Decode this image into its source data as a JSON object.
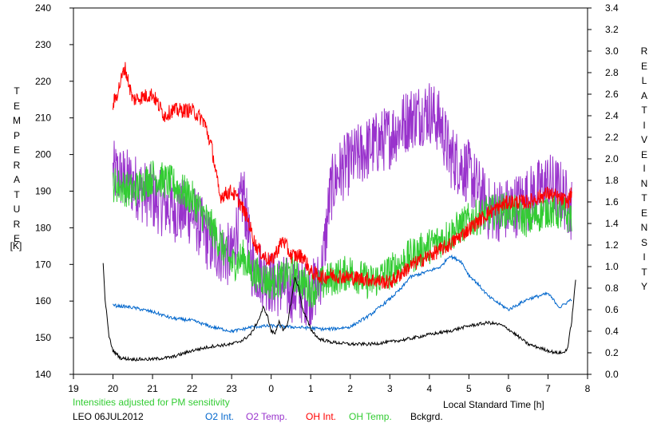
{
  "chart_data": {
    "type": "line",
    "left_axis": {
      "label_letters": [
        "T",
        "E",
        "M",
        "P",
        "E",
        "R",
        "A",
        "T",
        "U",
        "R",
        "E"
      ],
      "unit": "[K]",
      "range": [
        140,
        240
      ],
      "ticks": [
        "140",
        "150",
        "160",
        "170",
        "180",
        "190",
        "200",
        "210",
        "220",
        "230",
        "240"
      ]
    },
    "right_axis": {
      "label_word1": [
        "R",
        "E",
        "L",
        "A",
        "T",
        "I",
        "V",
        "E"
      ],
      "label_word2": [
        "I",
        "N",
        "T",
        "E",
        "N",
        "S",
        "I",
        "T",
        "Y"
      ],
      "range": [
        0.0,
        3.4
      ],
      "ticks": [
        "0.0",
        "0.2",
        "0.4",
        "0.6",
        "0.8",
        "1.0",
        "1.2",
        "1.4",
        "1.6",
        "1.8",
        "2.0",
        "2.2",
        "2.4",
        "2.6",
        "2.8",
        "3.0",
        "3.2",
        "3.4"
      ]
    },
    "x_axis": {
      "label": "Local Standard Time [h]",
      "range": [
        19,
        32
      ],
      "ticks": [
        "19",
        "20",
        "21",
        "22",
        "23",
        "0",
        "1",
        "2",
        "3",
        "4",
        "5",
        "6",
        "7",
        "8"
      ]
    },
    "note": "Intensities adjusted for PM sensitivity",
    "station": "LEO 06JUL2012",
    "legend": [
      "O2 Int.",
      "O2 Temp.",
      "OH Int.",
      "OH Temp.",
      "Bckgrd."
    ],
    "series": [
      {
        "name": "O2 Int.",
        "axis": "right",
        "color": "#0066cc",
        "x": [
          20.0,
          20.5,
          21.0,
          21.5,
          22.0,
          22.5,
          23.0,
          23.3,
          23.5,
          24.0,
          24.5,
          25.0,
          25.3,
          25.5,
          26.0,
          26.5,
          27.0,
          27.3,
          27.5,
          28.0,
          28.3,
          28.5,
          28.8,
          29.0,
          29.2,
          29.5,
          30.0,
          30.5,
          31.0,
          31.3,
          31.6
        ],
        "y": [
          0.64,
          0.62,
          0.58,
          0.52,
          0.5,
          0.44,
          0.4,
          0.42,
          0.44,
          0.45,
          0.44,
          0.43,
          0.42,
          0.42,
          0.44,
          0.55,
          0.7,
          0.8,
          0.9,
          0.96,
          1.0,
          1.1,
          1.05,
          0.92,
          0.85,
          0.72,
          0.6,
          0.7,
          0.75,
          0.62,
          0.7
        ]
      },
      {
        "name": "O2 Temp.",
        "axis": "left",
        "color": "#9933cc",
        "x": [
          20.0,
          20.5,
          21.0,
          21.5,
          22.0,
          22.5,
          23.0,
          23.3,
          23.5,
          24.0,
          24.5,
          25.0,
          25.2,
          25.3,
          25.5,
          25.7,
          26.0,
          26.5,
          27.0,
          27.5,
          28.0,
          28.3,
          28.5,
          29.0,
          29.5,
          30.0,
          30.5,
          31.0,
          31.3,
          31.6
        ],
        "y": [
          195,
          192,
          188,
          185,
          184,
          175,
          172,
          190,
          170,
          165,
          163,
          162,
          165,
          170,
          190,
          195,
          198,
          202,
          205,
          210,
          212,
          208,
          200,
          195,
          185,
          185,
          188,
          192,
          190,
          185
        ],
        "jitter": 9
      },
      {
        "name": "OH Int.",
        "axis": "right",
        "color": "#ff0000",
        "x": [
          20.0,
          20.1,
          20.3,
          20.5,
          21.0,
          21.3,
          21.5,
          22.0,
          22.3,
          22.5,
          22.7,
          23.0,
          23.2,
          23.4,
          23.6,
          23.8,
          24.0,
          24.3,
          24.5,
          24.8,
          25.0,
          25.3,
          25.5,
          26.0,
          26.5,
          27.0,
          27.5,
          28.0,
          28.5,
          29.0,
          29.5,
          30.0,
          30.5,
          31.0,
          31.5,
          31.6
        ],
        "y": [
          2.5,
          2.6,
          2.85,
          2.55,
          2.6,
          2.4,
          2.45,
          2.45,
          2.35,
          2.1,
          1.65,
          1.7,
          1.6,
          1.45,
          1.2,
          1.1,
          1.05,
          1.25,
          1.1,
          1.1,
          0.95,
          0.9,
          0.92,
          0.9,
          0.88,
          0.85,
          1.0,
          1.1,
          1.2,
          1.35,
          1.5,
          1.6,
          1.6,
          1.68,
          1.6,
          1.68
        ],
        "jitter": 0.07
      },
      {
        "name": "OH Temp.",
        "axis": "left",
        "color": "#33cc33",
        "x": [
          20.0,
          20.5,
          21.0,
          21.5,
          22.0,
          22.5,
          23.0,
          23.3,
          23.5,
          24.0,
          24.3,
          24.5,
          25.0,
          25.5,
          26.0,
          26.5,
          27.0,
          27.5,
          28.0,
          28.5,
          29.0,
          29.5,
          30.0,
          30.5,
          31.0,
          31.6
        ],
        "y": [
          192,
          190,
          194,
          192,
          188,
          180,
          170,
          172,
          168,
          165,
          166,
          168,
          163,
          166,
          168,
          165,
          168,
          172,
          175,
          178,
          182,
          184,
          185,
          182,
          185,
          183
        ],
        "jitter": 5
      },
      {
        "name": "Bckgrd.",
        "axis": "right",
        "color": "#000000",
        "x": [
          19.75,
          19.8,
          19.9,
          20.0,
          20.2,
          20.5,
          21.0,
          21.5,
          22.0,
          22.5,
          23.0,
          23.3,
          23.5,
          23.7,
          23.8,
          23.9,
          24.0,
          24.1,
          24.2,
          24.3,
          24.4,
          24.5,
          24.6,
          24.7,
          24.8,
          25.0,
          25.2,
          25.5,
          26.0,
          26.5,
          27.0,
          27.5,
          28.0,
          28.5,
          29.0,
          29.5,
          29.8,
          30.0,
          30.5,
          31.0,
          31.2,
          31.4,
          31.5,
          31.6,
          31.7
        ],
        "y": [
          1.02,
          0.7,
          0.35,
          0.22,
          0.15,
          0.14,
          0.14,
          0.16,
          0.22,
          0.26,
          0.28,
          0.32,
          0.38,
          0.52,
          0.62,
          0.55,
          0.4,
          0.38,
          0.5,
          0.4,
          0.45,
          0.66,
          0.9,
          0.8,
          0.6,
          0.42,
          0.33,
          0.3,
          0.28,
          0.28,
          0.3,
          0.33,
          0.37,
          0.4,
          0.45,
          0.48,
          0.46,
          0.42,
          0.28,
          0.22,
          0.2,
          0.2,
          0.25,
          0.5,
          0.88
        ]
      }
    ]
  }
}
